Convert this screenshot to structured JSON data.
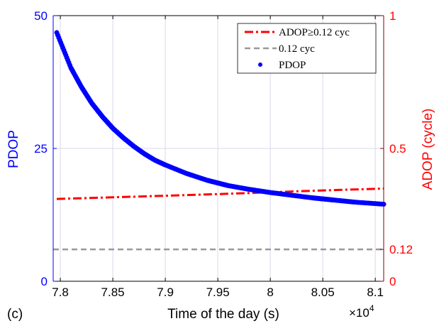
{
  "chart_data": {
    "type": "line",
    "panel_label": "(c)",
    "xlabel": "Time of the day (s)",
    "x_multiplier_label": "×10",
    "x_multiplier_exp": "4",
    "x_ticks": [
      7.8,
      7.85,
      7.9,
      7.95,
      8.0,
      8.05,
      8.1
    ],
    "x_tick_labels": [
      "7.8",
      "7.85",
      "7.9",
      "7.95",
      "8",
      "8.05",
      "8.1"
    ],
    "xlim": [
      7.7932,
      8.108
    ],
    "ylabel_left": "PDOP",
    "ylim_left": [
      0,
      50
    ],
    "y_ticks_left": [
      0,
      25,
      50
    ],
    "y_tick_labels_left": [
      "0",
      "25",
      "50"
    ],
    "ylabel_right": "ADOP (cycle)",
    "ylim_right": [
      0,
      1
    ],
    "y_ticks_right": [
      0,
      0.12,
      0.5,
      1
    ],
    "y_tick_labels_right": [
      "0",
      "0.12",
      "0.5",
      "1"
    ],
    "grid": true,
    "legend_position": "top-right",
    "colors": {
      "pdop": "#0000ff",
      "adop": "#ff0000",
      "threshold": "#999999",
      "left_axis": "#0000ff",
      "right_axis": "#ff0000",
      "grid": "#d9d9ec"
    },
    "series": [
      {
        "name": "ADOP≥0.12 cyc",
        "axis": "right",
        "style": "dash-dot",
        "x": [
          7.7966,
          7.85,
          7.9,
          7.95,
          8.0,
          8.05,
          8.108
        ],
        "y": [
          0.31,
          0.316,
          0.322,
          0.328,
          0.335,
          0.342,
          0.349
        ]
      },
      {
        "name": "0.12 cyc",
        "axis": "right",
        "style": "dashed",
        "x": [
          7.7932,
          8.108
        ],
        "y": [
          0.12,
          0.12
        ]
      },
      {
        "name": "PDOP",
        "axis": "left",
        "style": "dots",
        "x": [
          7.7966,
          7.81,
          7.82,
          7.83,
          7.84,
          7.85,
          7.86,
          7.87,
          7.88,
          7.89,
          7.9,
          7.92,
          7.94,
          7.95,
          7.96,
          7.98,
          8.0,
          8.02,
          8.04,
          8.05,
          8.06,
          8.08,
          8.108
        ],
        "y": [
          46.8,
          40.2,
          36.6,
          33.5,
          31.0,
          28.8,
          27.0,
          25.4,
          24.0,
          22.8,
          21.9,
          20.3,
          19.0,
          18.5,
          18.0,
          17.3,
          16.7,
          16.2,
          15.7,
          15.5,
          15.3,
          14.9,
          14.5
        ]
      }
    ]
  }
}
